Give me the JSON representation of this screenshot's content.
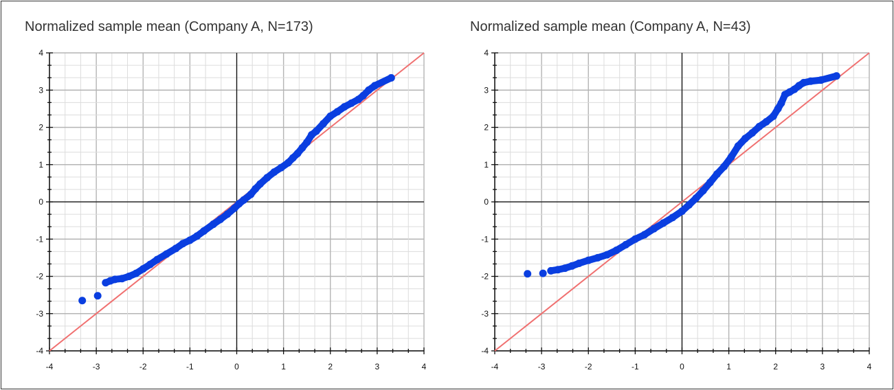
{
  "chart_data": [
    {
      "type": "scatter",
      "title": "Normalized sample mean (Company A, N=173)",
      "xlim": [
        -4,
        4
      ],
      "ylim": [
        -4,
        4
      ],
      "x_ticks": [
        "-4",
        "-3",
        "-2",
        "-1",
        "0",
        "1",
        "2",
        "3",
        "4"
      ],
      "y_ticks": [
        "-4",
        "-3",
        "-2",
        "-1",
        "0",
        "1",
        "2",
        "3",
        "4"
      ],
      "grid": true,
      "reference_line": {
        "slope": 1,
        "intercept": 0,
        "color": "#f07070"
      },
      "point_color": "#0a3ee0",
      "points": [
        [
          -3.3,
          -2.65
        ],
        [
          -2.97,
          -2.52
        ],
        [
          -2.8,
          -2.17
        ],
        [
          -2.7,
          -2.12
        ],
        [
          -2.6,
          -2.08
        ],
        [
          -2.45,
          -2.06
        ],
        [
          -2.3,
          -2.0
        ],
        [
          -2.15,
          -1.92
        ],
        [
          -2.0,
          -1.8
        ],
        [
          -1.85,
          -1.68
        ],
        [
          -1.7,
          -1.55
        ],
        [
          -1.5,
          -1.4
        ],
        [
          -1.3,
          -1.25
        ],
        [
          -1.15,
          -1.12
        ],
        [
          -1.0,
          -1.03
        ],
        [
          -0.85,
          -0.92
        ],
        [
          -0.7,
          -0.78
        ],
        [
          -0.5,
          -0.6
        ],
        [
          -0.35,
          -0.47
        ],
        [
          -0.2,
          -0.33
        ],
        [
          -0.05,
          -0.17
        ],
        [
          0.05,
          -0.05
        ],
        [
          0.15,
          0.05
        ],
        [
          0.3,
          0.2
        ],
        [
          0.4,
          0.35
        ],
        [
          0.5,
          0.48
        ],
        [
          0.65,
          0.65
        ],
        [
          0.8,
          0.8
        ],
        [
          0.95,
          0.92
        ],
        [
          1.1,
          1.05
        ],
        [
          1.2,
          1.18
        ],
        [
          1.3,
          1.3
        ],
        [
          1.4,
          1.45
        ],
        [
          1.5,
          1.6
        ],
        [
          1.6,
          1.8
        ],
        [
          1.7,
          1.9
        ],
        [
          1.85,
          2.1
        ],
        [
          2.0,
          2.3
        ],
        [
          2.15,
          2.42
        ],
        [
          2.3,
          2.55
        ],
        [
          2.45,
          2.65
        ],
        [
          2.6,
          2.75
        ],
        [
          2.7,
          2.85
        ],
        [
          2.82,
          3.0
        ],
        [
          2.95,
          3.12
        ],
        [
          3.3,
          3.33
        ]
      ]
    },
    {
      "type": "scatter",
      "title": "Normalized sample mean (Company A, N=43)",
      "xlim": [
        -4,
        4
      ],
      "ylim": [
        -4,
        4
      ],
      "x_ticks": [
        "-4",
        "-3",
        "-2",
        "-1",
        "0",
        "1",
        "2",
        "3",
        "4"
      ],
      "y_ticks": [
        "-4",
        "-3",
        "-2",
        "-1",
        "0",
        "1",
        "2",
        "3",
        "4"
      ],
      "grid": true,
      "reference_line": {
        "slope": 1,
        "intercept": 0,
        "color": "#f07070"
      },
      "point_color": "#0a3ee0",
      "points": [
        [
          -3.3,
          -1.93
        ],
        [
          -2.97,
          -1.92
        ],
        [
          -2.8,
          -1.85
        ],
        [
          -2.65,
          -1.82
        ],
        [
          -2.5,
          -1.78
        ],
        [
          -2.35,
          -1.72
        ],
        [
          -2.2,
          -1.65
        ],
        [
          -2.0,
          -1.57
        ],
        [
          -1.8,
          -1.5
        ],
        [
          -1.6,
          -1.42
        ],
        [
          -1.4,
          -1.3
        ],
        [
          -1.2,
          -1.15
        ],
        [
          -1.0,
          -1.0
        ],
        [
          -0.8,
          -0.88
        ],
        [
          -0.6,
          -0.72
        ],
        [
          -0.4,
          -0.57
        ],
        [
          -0.2,
          -0.42
        ],
        [
          0.0,
          -0.25
        ],
        [
          0.15,
          -0.08
        ],
        [
          0.3,
          0.1
        ],
        [
          0.45,
          0.3
        ],
        [
          0.6,
          0.52
        ],
        [
          0.75,
          0.75
        ],
        [
          0.9,
          0.95
        ],
        [
          1.05,
          1.2
        ],
        [
          1.2,
          1.5
        ],
        [
          1.35,
          1.7
        ],
        [
          1.5,
          1.85
        ],
        [
          1.65,
          2.02
        ],
        [
          1.8,
          2.15
        ],
        [
          1.95,
          2.3
        ],
        [
          2.05,
          2.5
        ],
        [
          2.12,
          2.65
        ],
        [
          2.2,
          2.88
        ],
        [
          2.3,
          2.95
        ],
        [
          2.4,
          3.02
        ],
        [
          2.5,
          3.12
        ],
        [
          2.6,
          3.2
        ],
        [
          2.75,
          3.24
        ],
        [
          2.97,
          3.27
        ],
        [
          3.3,
          3.38
        ]
      ]
    }
  ]
}
